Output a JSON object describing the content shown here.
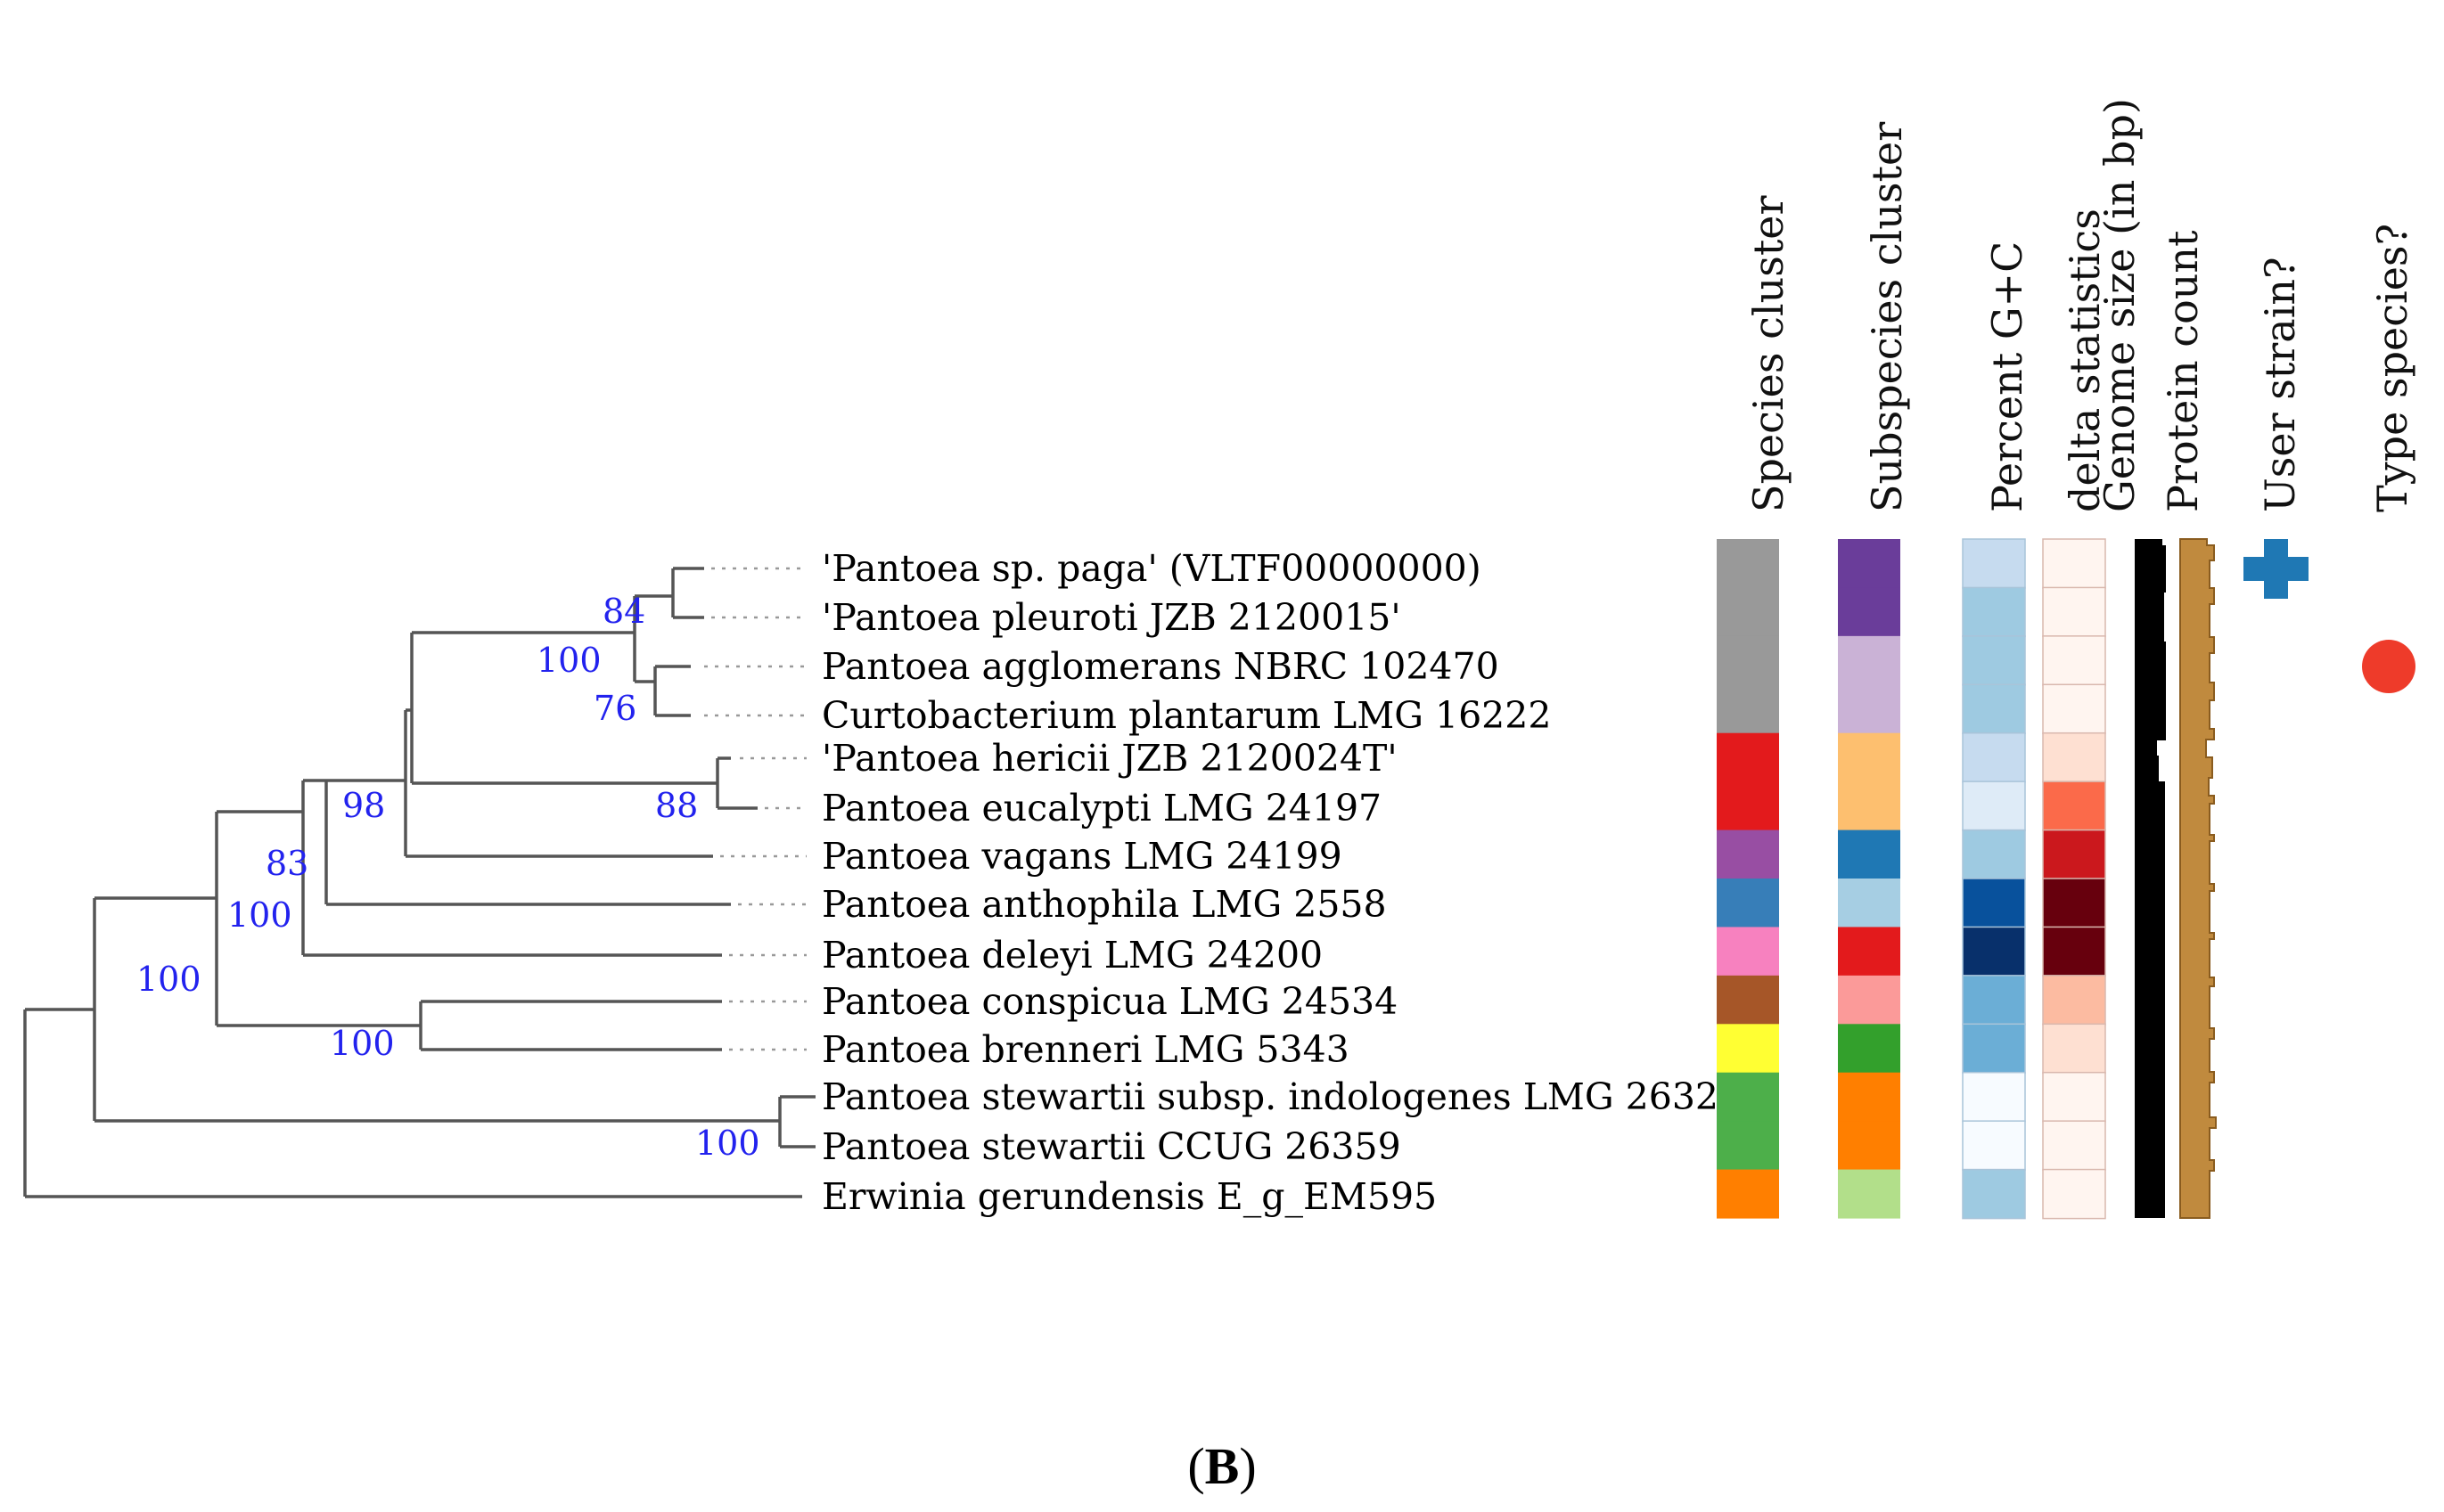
{
  "figure": {
    "panel_label_open": "(",
    "panel_label_letter": "B",
    "panel_label_close": ")"
  },
  "taxa": [
    "'Pantoea sp. paga' (VLTF00000000)",
    "'Pantoea pleuroti JZB 2120015'",
    "Pantoea agglomerans NBRC 102470",
    "Curtobacterium plantarum LMG 16222",
    "'Pantoea hericii JZB 2120024T'",
    "Pantoea eucalypti LMG 24197",
    "Pantoea vagans LMG 24199",
    "Pantoea anthophila LMG 2558",
    "Pantoea deleyi LMG 24200",
    "Pantoea conspicua LMG 24534",
    "Pantoea brenneri LMG 5343",
    "Pantoea stewartii subsp. indologenes LMG 2632",
    "Pantoea stewartii CCUG 26359",
    "Erwinia gerundensis E_g_EM595"
  ],
  "bootstrap": [
    "84",
    "100",
    "76",
    "88",
    "98",
    "83",
    "100",
    "100",
    "100",
    "100"
  ],
  "columns": {
    "species_cluster": "Species cluster",
    "subspecies_cluster": "Subspecies cluster",
    "percent_gc": "Percent G+C",
    "delta_statistics": "delta statistics",
    "genome_size": "Genome size (in bp)",
    "protein_count": "Protein count",
    "user_strain": "User strain?",
    "type_species": "Type species?"
  },
  "species_cluster_colors": [
    "#999999",
    "#999999",
    "#999999",
    "#999999",
    "#e31a1c",
    "#e31a1c",
    "#984ea3",
    "#377eb8",
    "#f781bf",
    "#a65628",
    "#ffff33",
    "#4daf4a",
    "#4daf4a",
    "#ff7f00"
  ],
  "subspecies_cluster_colors": [
    "#6a3d9a",
    "#6a3d9a",
    "#cab2d6",
    "#cab2d6",
    "#fdbf6f",
    "#fdbf6f",
    "#1f78b4",
    "#a6cee3",
    "#e31a1c",
    "#fb9a99",
    "#33a02c",
    "#ff7f00",
    "#ff7f00",
    "#b2df8a"
  ],
  "percent_gc_colors": [
    "#c6dbef",
    "#9ecae1",
    "#9ecae1",
    "#9ecae1",
    "#c6dbef",
    "#deebf7",
    "#9ecae1",
    "#08519c",
    "#08306b",
    "#6baed6",
    "#6baed6",
    "#f7fbff",
    "#f7fbff",
    "#9ecae1"
  ],
  "delta_statistics_colors": [
    "#fff5f0",
    "#fff5f0",
    "#fff5f0",
    "#fff5f0",
    "#fee0d2",
    "#fb6a4a",
    "#cb181d",
    "#67000d",
    "#67000d",
    "#fcbba1",
    "#fee0d2",
    "#fff5f0",
    "#fff5f0",
    "#fff5f0"
  ],
  "genome_size_color": "#000000",
  "protein_count_color": "#c08a3e",
  "user_strain_color": "#1f78b4",
  "type_species_color": "#ee3b2a",
  "bootstrap_color": "#2222ee"
}
